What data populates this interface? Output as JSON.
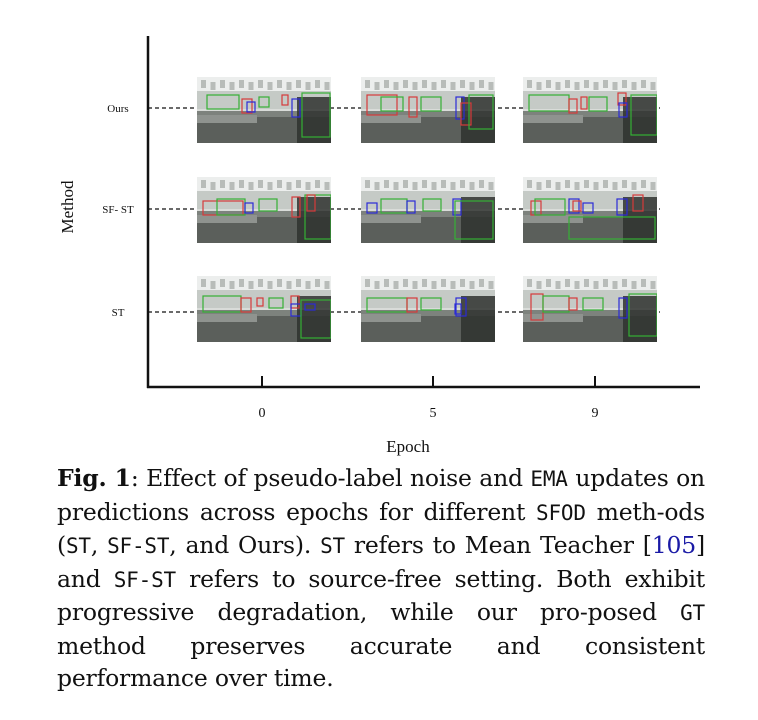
{
  "figure": {
    "y_axis_label": "Method",
    "x_axis_label": "Epoch",
    "rows": [
      {
        "label": "Ours"
      },
      {
        "label": "SF- ST"
      },
      {
        "label": "ST"
      }
    ],
    "epochs": [
      "0",
      "5",
      "9"
    ]
  },
  "caption": {
    "fig_label": "Fig. 1",
    "sep": ": ",
    "t1": "Effect of pseudo-label noise and ",
    "code_ema": "EMA",
    "t2": " updates on predictions across epochs for different ",
    "code_sfod": "SFOD",
    "t3": " meth-ods (",
    "code_st1": "ST",
    "t4": ", ",
    "code_sfst1": "SF-ST",
    "t5": ", and Ours). ",
    "code_st2": "ST",
    "t6": " refers to Mean Teacher [",
    "cite": "105",
    "t7": "] and ",
    "code_sfst2": "SF-ST",
    "t8": " refers to source-free setting. Both exhibit progressive degradation, while our pro-posed ",
    "code_gt": "GT",
    "t9": " method preserves accurate and consistent performance over time."
  }
}
